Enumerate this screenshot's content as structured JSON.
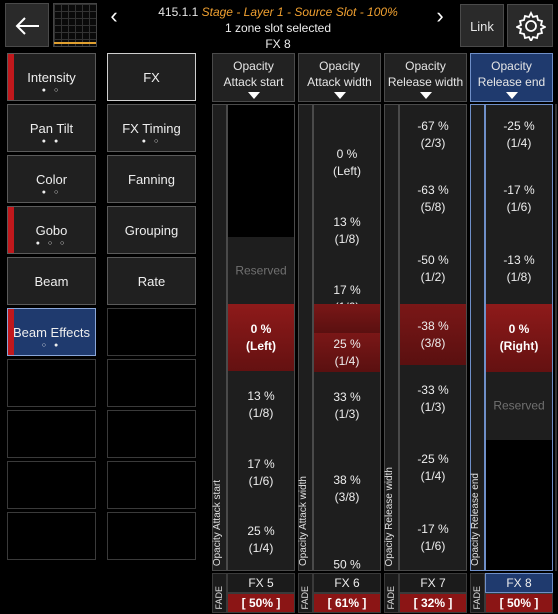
{
  "header": {
    "cue": "415.1.1",
    "location": "Stage - Layer 1 - Source Slot - ",
    "percent": "100%",
    "subtitle": "1 zone slot selected",
    "fx": "FX 8",
    "link_label": "Link",
    "prev_icon": "chevron-left-icon",
    "next_icon": "chevron-right-icon"
  },
  "left_buttons": [
    {
      "label": "Intensity",
      "dots": "● ○",
      "marked": true
    },
    {
      "label": "Pan Tilt",
      "dots": "● ●",
      "marked": false
    },
    {
      "label": "Color",
      "dots": "● ○",
      "marked": false
    },
    {
      "label": "Gobo",
      "dots": "● ○ ○",
      "marked": true
    },
    {
      "label": "Beam",
      "dots": "",
      "marked": false
    },
    {
      "label": "Beam Effects",
      "dots": "○ ●",
      "marked": true,
      "selected": true
    }
  ],
  "fx_buttons": [
    "FX",
    "FX Timing",
    "Fanning",
    "Grouping",
    "Rate"
  ],
  "fx_timing_dots": "● ○",
  "columns": [
    {
      "title_line1": "Opacity",
      "title_line2": "Attack start",
      "vertical_label": "Opacity Attack start",
      "fx": "FX 5",
      "fade": "FADE",
      "percent": "[ 50% ]",
      "cells": [
        {
          "line1": "",
          "line2": ""
        },
        {
          "line1": "Reserved",
          "line2": ""
        },
        {
          "line1": "0 %",
          "line2": "(Left)"
        },
        {
          "line1": "13 %",
          "line2": "(1/8)"
        },
        {
          "line1": "17 %",
          "line2": "(1/6)"
        },
        {
          "line1": "25 %",
          "line2": "(1/4)"
        }
      ]
    },
    {
      "title_line1": "Opacity",
      "title_line2": "Attack width",
      "vertical_label": "Opacity Attack width",
      "fx": "FX 6",
      "fade": "FADE",
      "percent": "[ 61% ]",
      "cells": [
        {
          "line1": "",
          "line2": ""
        },
        {
          "line1": "0 %",
          "line2": "(Left)"
        },
        {
          "line1": "13 %",
          "line2": "(1/8)"
        },
        {
          "line1": "17 %",
          "line2": "(1/6)"
        },
        {
          "line1": "25 %",
          "line2": "(1/4)"
        },
        {
          "line1": "33 %",
          "line2": "(1/3)"
        },
        {
          "line1": "38 %",
          "line2": "(3/8)"
        },
        {
          "line1": "50 %",
          "line2": ""
        }
      ]
    },
    {
      "title_line1": "Opacity",
      "title_line2": "Release width",
      "vertical_label": "Opacity Release width",
      "fx": "FX 7",
      "fade": "FADE",
      "percent": "[ 32% ]",
      "cells": [
        {
          "line1": "-67 %",
          "line2": "(2/3)"
        },
        {
          "line1": "-63 %",
          "line2": "(5/8)"
        },
        {
          "line1": "-50 %",
          "line2": "(1/2)"
        },
        {
          "line1": "-38 %",
          "line2": "(3/8)"
        },
        {
          "line1": "-33 %",
          "line2": "(1/3)"
        },
        {
          "line1": "-25 %",
          "line2": "(1/4)"
        },
        {
          "line1": "-17 %",
          "line2": "(1/6)"
        }
      ]
    },
    {
      "title_line1": "Opacity",
      "title_line2": "Release end",
      "vertical_label": "Opacity Release end",
      "fx": "FX 8",
      "fade": "FADE",
      "percent": "[ 50% ]",
      "cells": [
        {
          "line1": "-25 %",
          "line2": "(1/4)"
        },
        {
          "line1": "-17 %",
          "line2": "(1/6)"
        },
        {
          "line1": "-13 %",
          "line2": "(1/8)"
        },
        {
          "line1": "0 %",
          "line2": "(Right)"
        },
        {
          "line1": "Reserved",
          "line2": ""
        },
        {
          "line1": "",
          "line2": ""
        }
      ]
    }
  ],
  "colors": {
    "accent_selected": "#1f3a6e",
    "value_selected": "#8e1a1a",
    "mark_red": "#c0181c",
    "location_orange": "#f0a030"
  }
}
